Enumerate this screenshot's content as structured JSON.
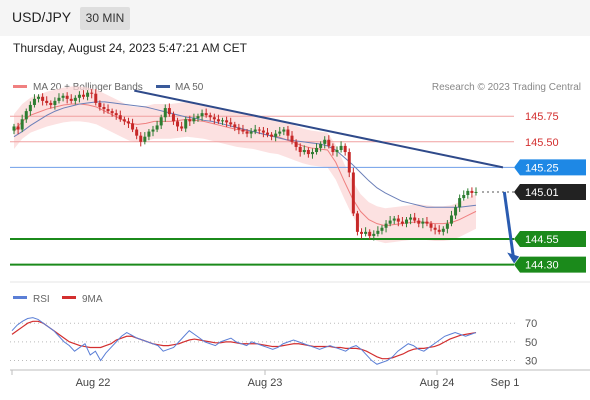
{
  "header": {
    "symbol": "USD/JPY",
    "timeframe": "30 MIN",
    "timestamp": "Thursday, August 24, 2023 5:47:21 AM CET"
  },
  "chart_data": [
    {
      "type": "candlestick",
      "title": "USD/JPY",
      "legend": [
        {
          "name": "MA 20 + Bollinger Bands",
          "color": "#f08080"
        },
        {
          "name": "MA 50",
          "color": "#3a5a9a"
        }
      ],
      "source_note": "Research © 2023 Trading Central",
      "x_ticks": [
        "Aug 22",
        "Aug 23",
        "Aug 24",
        "Sep 1"
      ],
      "ylim": [
        144.12,
        146.28
      ],
      "levels": [
        {
          "value": 145.75,
          "label": "145.75",
          "kind": "resistance",
          "color": "#d32f2f"
        },
        {
          "value": 145.5,
          "label": "145.50",
          "kind": "resistance",
          "color": "#d32f2f"
        },
        {
          "value": 145.25,
          "label": "145.25",
          "kind": "pivot",
          "color": "#1e88e5"
        },
        {
          "value": 145.01,
          "label": "145.01",
          "kind": "last-price",
          "color": "#222222"
        },
        {
          "value": 144.55,
          "label": "144.55",
          "kind": "support",
          "color": "#1b8a1b"
        },
        {
          "value": 144.3,
          "label": "144.30",
          "kind": "support",
          "color": "#1b8a1b"
        }
      ],
      "trendline": {
        "from": {
          "x": 0.24,
          "y": 146.0
        },
        "to": {
          "x": 2.97,
          "y": 145.25
        }
      },
      "forecast_arrow": {
        "from": {
          "x": 2.99,
          "y": 145.01
        },
        "to": {
          "x": 3.12,
          "y": 144.33
        }
      },
      "close": [
        145.65,
        145.62,
        145.72,
        145.8,
        145.86,
        145.92,
        145.94,
        145.9,
        145.88,
        145.86,
        145.9,
        145.93,
        145.95,
        145.92,
        145.9,
        145.93,
        145.96,
        145.94,
        145.98,
        145.97,
        145.88,
        145.84,
        145.82,
        145.8,
        145.78,
        145.76,
        145.72,
        145.7,
        145.68,
        145.62,
        145.56,
        145.5,
        145.55,
        145.6,
        145.62,
        145.66,
        145.74,
        145.83,
        145.77,
        145.7,
        145.65,
        145.63,
        145.72,
        145.7,
        145.73,
        145.75,
        145.78,
        145.76,
        145.74,
        145.72,
        145.7,
        145.71,
        145.69,
        145.67,
        145.64,
        145.62,
        145.6,
        145.58,
        145.6,
        145.62,
        145.61,
        145.59,
        145.57,
        145.55,
        145.58,
        145.6,
        145.62,
        145.56,
        145.5,
        145.45,
        145.4,
        145.42,
        145.38,
        145.4,
        145.44,
        145.48,
        145.52,
        145.46,
        145.4,
        145.42,
        145.46,
        145.4,
        145.2,
        144.8,
        144.62,
        144.6,
        144.62,
        144.58,
        144.6,
        144.63,
        144.66,
        144.7,
        144.73,
        144.75,
        144.72,
        144.7,
        144.74,
        144.76,
        144.73,
        144.7,
        144.72,
        144.7,
        144.66,
        144.64,
        144.62,
        144.65,
        144.7,
        144.78,
        144.86,
        144.95,
        144.98,
        145.02,
        145.0,
        145.01
      ],
      "ma20": [
        145.6,
        145.7,
        145.76,
        145.79,
        145.82,
        145.84,
        145.86,
        145.87,
        145.87,
        145.86,
        145.84,
        145.8,
        145.76,
        145.72,
        145.68,
        145.67,
        145.68,
        145.7,
        145.7,
        145.7,
        145.71,
        145.72,
        145.71,
        145.7,
        145.68,
        145.66,
        145.64,
        145.62,
        145.61,
        145.6,
        145.58,
        145.56,
        145.55,
        145.52,
        145.49,
        145.46,
        145.44,
        145.43,
        145.42,
        145.3,
        145.12,
        144.95,
        144.82,
        144.74,
        144.7,
        144.68,
        144.69,
        144.7,
        144.71,
        144.72,
        144.71,
        144.7,
        144.7,
        144.71,
        144.74,
        144.78,
        144.82
      ],
      "ma50": [
        145.55,
        145.6,
        145.66,
        145.71,
        145.76,
        145.8,
        145.83,
        145.85,
        145.87,
        145.88,
        145.89,
        145.89,
        145.88,
        145.87,
        145.86,
        145.85,
        145.84,
        145.82,
        145.8,
        145.78,
        145.76,
        145.74,
        145.73,
        145.71,
        145.7,
        145.68,
        145.66,
        145.64,
        145.62,
        145.6,
        145.58,
        145.56,
        145.54,
        145.52,
        145.51,
        145.5,
        145.49,
        145.48,
        145.46,
        145.42,
        145.35,
        145.28,
        145.2,
        145.12,
        145.05,
        145.0,
        144.96,
        144.92,
        144.9,
        144.88,
        144.86,
        144.86,
        144.86,
        144.86,
        144.86,
        144.87,
        144.88
      ]
    },
    {
      "type": "line",
      "legend": [
        {
          "name": "RSI",
          "color": "#5b7fd6"
        },
        {
          "name": "9MA",
          "color": "#d32f2f"
        }
      ],
      "ylim": [
        22,
        82
      ],
      "y_ticks": [
        "70",
        "50",
        "30"
      ],
      "y_tick_values": [
        70,
        50,
        30
      ],
      "rsi": [
        62,
        68,
        72,
        75,
        76,
        74,
        70,
        66,
        62,
        56,
        50,
        46,
        40,
        44,
        48,
        36,
        40,
        30,
        38,
        44,
        50,
        56,
        60,
        57,
        54,
        52,
        50,
        48,
        46,
        40,
        42,
        44,
        50,
        56,
        62,
        58,
        54,
        50,
        48,
        46,
        50,
        52,
        54,
        50,
        48,
        46,
        50,
        48,
        46,
        44,
        42,
        44,
        48,
        50,
        52,
        50,
        48,
        46,
        44,
        42,
        44,
        46,
        44,
        42,
        40,
        44,
        46,
        42,
        36,
        30,
        26,
        28,
        30,
        34,
        40,
        44,
        48,
        46,
        42,
        40,
        44,
        48,
        52,
        56,
        58,
        60,
        58,
        56,
        58,
        60
      ],
      "rsi_ma": [
        58,
        62,
        66,
        70,
        72,
        72,
        70,
        66,
        62,
        58,
        54,
        50,
        48,
        46,
        45,
        44,
        44,
        44,
        46,
        48,
        52,
        54,
        56,
        56,
        54,
        52,
        50,
        48,
        47,
        46,
        46,
        47,
        48,
        50,
        52,
        53,
        52,
        51,
        50,
        49,
        49,
        50,
        50,
        49,
        48,
        48,
        48,
        48,
        47,
        46,
        45,
        45,
        46,
        47,
        48,
        48,
        47,
        46,
        45,
        45,
        45,
        45,
        44,
        44,
        43,
        43,
        43,
        42,
        40,
        37,
        34,
        32,
        32,
        33,
        35,
        37,
        40,
        42,
        43,
        43,
        44,
        45,
        47,
        50,
        53,
        55,
        57,
        58,
        59,
        60
      ]
    }
  ]
}
